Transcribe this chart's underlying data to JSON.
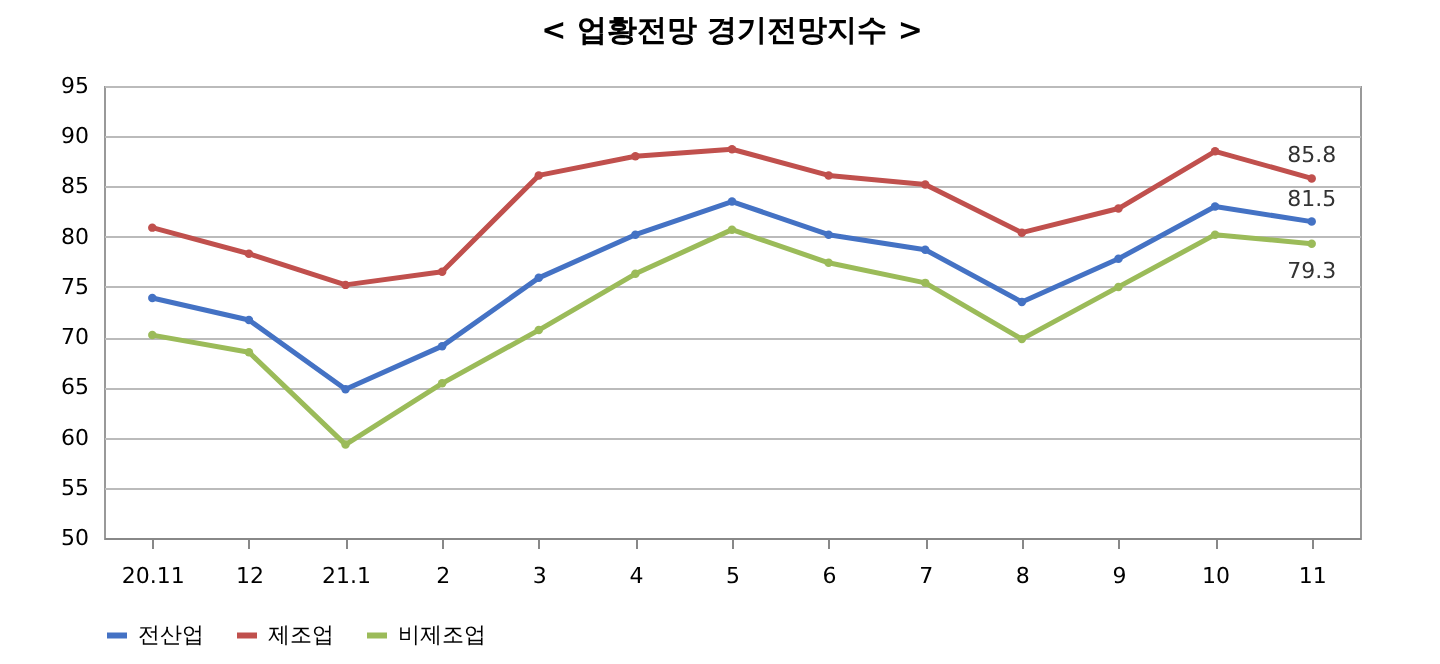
{
  "chart_data": {
    "type": "line",
    "title": "< 업황전망 경기전망지수 >",
    "categories": [
      "20.11",
      "12",
      "21.1",
      "2",
      "3",
      "4",
      "5",
      "6",
      "7",
      "8",
      "9",
      "10",
      "11"
    ],
    "series": [
      {
        "name": "전산업",
        "color": "#4472c4",
        "values": [
          73.9,
          71.7,
          64.8,
          69.1,
          75.9,
          80.2,
          83.5,
          80.2,
          78.7,
          73.5,
          77.8,
          83.0,
          81.5
        ],
        "value_labels": [
          null,
          null,
          null,
          null,
          null,
          null,
          null,
          null,
          null,
          null,
          null,
          null,
          "81.5"
        ]
      },
      {
        "name": "제조업",
        "color": "#c0504d",
        "values": [
          80.9,
          78.3,
          75.2,
          76.5,
          86.1,
          88.0,
          88.7,
          86.1,
          85.2,
          80.4,
          82.8,
          88.5,
          85.8
        ],
        "value_labels": [
          null,
          null,
          null,
          null,
          null,
          null,
          null,
          null,
          null,
          null,
          null,
          null,
          "85.8"
        ]
      },
      {
        "name": "비제조업",
        "color": "#9bbb59",
        "values": [
          70.2,
          68.5,
          59.3,
          65.4,
          70.7,
          76.3,
          80.7,
          77.4,
          75.4,
          69.8,
          75.0,
          80.2,
          79.3
        ],
        "value_labels": [
          null,
          null,
          null,
          null,
          null,
          null,
          null,
          null,
          null,
          null,
          null,
          null,
          "79.3"
        ]
      }
    ],
    "ylim": [
      50,
      95
    ],
    "yticks": [
      50,
      55,
      60,
      65,
      70,
      75,
      80,
      85,
      90,
      95
    ],
    "grid": "y",
    "legend": "bottom",
    "marker": "circle",
    "line_style": "solid"
  }
}
